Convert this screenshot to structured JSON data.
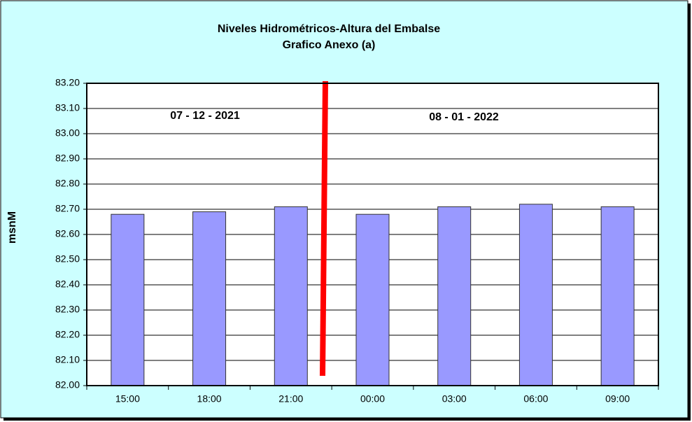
{
  "chart_data": {
    "type": "bar",
    "title": "Niveles Hidrométricos-Altura del Embalse",
    "subtitle": "Grafico Anexo (a)",
    "y_label": "msnM",
    "annotations": [
      "07 - 12 - 2021",
      "08 - 01 - 2022"
    ],
    "categories": [
      "15:00",
      "18:00",
      "21:00",
      "00:00",
      "03:00",
      "06:00",
      "09:00"
    ],
    "values": [
      82.68,
      82.69,
      82.71,
      82.68,
      82.71,
      82.72,
      82.71
    ],
    "color": "#9999ff",
    "ylim": [
      82.0,
      83.2
    ],
    "yticks": [
      {
        "value": 82.0,
        "label": "82.00"
      },
      {
        "value": 82.1,
        "label": "82.10"
      },
      {
        "value": 82.2,
        "label": "82.20"
      },
      {
        "value": 82.3,
        "label": "82.30"
      },
      {
        "value": 82.4,
        "label": "82.40"
      },
      {
        "value": 82.5,
        "label": "82.50"
      },
      {
        "value": 82.6,
        "label": "82.60"
      },
      {
        "value": 82.7,
        "label": "82.70"
      },
      {
        "value": 82.8,
        "label": "82.80"
      },
      {
        "value": 82.9,
        "label": "82.90"
      },
      {
        "value": 83.0,
        "label": "83.00"
      },
      {
        "value": 83.1,
        "label": "83.10"
      },
      {
        "value": 83.2,
        "label": "83.20"
      }
    ],
    "grid": true
  }
}
